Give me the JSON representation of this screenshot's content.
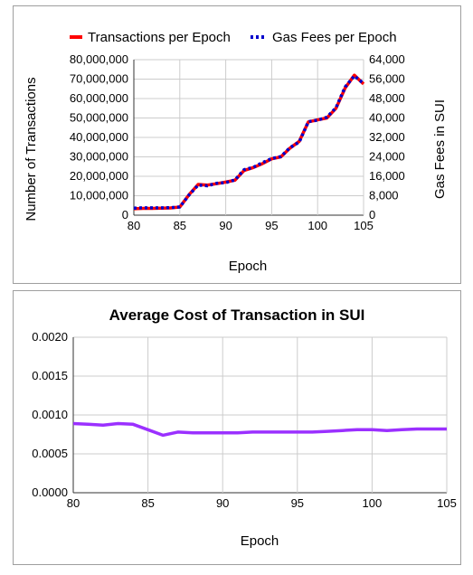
{
  "chart_data": [
    {
      "type": "line",
      "title": "",
      "xlabel": "Epoch",
      "ylabel": "Number of Transactions",
      "y2label": "Gas Fees in SUI",
      "legend_position": "top",
      "x": [
        80,
        81,
        82,
        83,
        84,
        85,
        86,
        87,
        88,
        89,
        90,
        91,
        92,
        93,
        94,
        95,
        96,
        97,
        98,
        99,
        100,
        101,
        102,
        103,
        104,
        105
      ],
      "xlim": [
        80,
        105
      ],
      "xticks": [
        "80",
        "85",
        "90",
        "95",
        "100",
        "105"
      ],
      "xtick_values": [
        80,
        85,
        90,
        95,
        100,
        105
      ],
      "ylim": [
        0,
        80000000
      ],
      "yticks": [
        "0",
        "10,000,000",
        "20,000,000",
        "30,000,000",
        "40,000,000",
        "50,000,000",
        "60,000,000",
        "70,000,000",
        "80,000,000"
      ],
      "ytick_values": [
        0,
        10000000,
        20000000,
        30000000,
        40000000,
        50000000,
        60000000,
        70000000,
        80000000
      ],
      "y2lim": [
        0,
        64000
      ],
      "y2ticks": [
        "0",
        "8,000",
        "16,000",
        "24,000",
        "32,000",
        "40,000",
        "48,000",
        "56,000",
        "64,000"
      ],
      "y2tick_values": [
        0,
        8000,
        16000,
        24000,
        32000,
        40000,
        48000,
        56000,
        64000
      ],
      "grid": true,
      "series": [
        {
          "name": "Transactions per Epoch",
          "axis": "left",
          "color": "#ff0000",
          "style": "solid",
          "values": [
            3300000,
            3500000,
            3500000,
            3600000,
            3700000,
            4200000,
            10500000,
            15800000,
            15500000,
            16200000,
            17000000,
            18000000,
            23000000,
            24500000,
            26500000,
            29000000,
            30000000,
            34500000,
            38000000,
            48000000,
            49000000,
            50000000,
            55000000,
            65500000,
            72000000,
            67500000
          ]
        },
        {
          "name": "Gas Fees per Epoch",
          "axis": "right",
          "color": "#0000cc",
          "style": "dotted",
          "values": [
            2900,
            3000,
            3000,
            3000,
            3100,
            3400,
            8300,
            12400,
            12100,
            13100,
            13400,
            14500,
            18700,
            19700,
            21600,
            23300,
            24100,
            27800,
            30100,
            38500,
            39100,
            40300,
            44200,
            52800,
            57300,
            54200
          ]
        }
      ]
    },
    {
      "type": "line",
      "title": "Average Cost of Transaction in SUI",
      "xlabel": "Epoch",
      "ylabel": "",
      "legend_position": "none",
      "x": [
        80,
        81,
        82,
        83,
        84,
        85,
        86,
        87,
        88,
        89,
        90,
        91,
        92,
        93,
        94,
        95,
        96,
        97,
        98,
        99,
        100,
        101,
        102,
        103,
        104,
        105
      ],
      "xlim": [
        80,
        105
      ],
      "xticks": [
        "80",
        "85",
        "90",
        "95",
        "100",
        "105"
      ],
      "xtick_values": [
        80,
        85,
        90,
        95,
        100,
        105
      ],
      "ylim": [
        0,
        0.002
      ],
      "yticks": [
        "0.0000",
        "0.0005",
        "0.0010",
        "0.0015",
        "0.0020"
      ],
      "ytick_values": [
        0,
        0.0005,
        0.001,
        0.0015,
        0.002
      ],
      "grid": true,
      "series": [
        {
          "name": "",
          "color": "#9b30ff",
          "style": "solid",
          "values": [
            0.00089,
            0.00088,
            0.00087,
            0.00089,
            0.00088,
            0.00081,
            0.00074,
            0.00078,
            0.00077,
            0.00077,
            0.00077,
            0.00077,
            0.00078,
            0.00078,
            0.00078,
            0.00078,
            0.00078,
            0.00079,
            0.0008,
            0.00081,
            0.00081,
            0.0008,
            0.00081,
            0.00082,
            0.00082,
            0.00082
          ]
        }
      ]
    }
  ]
}
